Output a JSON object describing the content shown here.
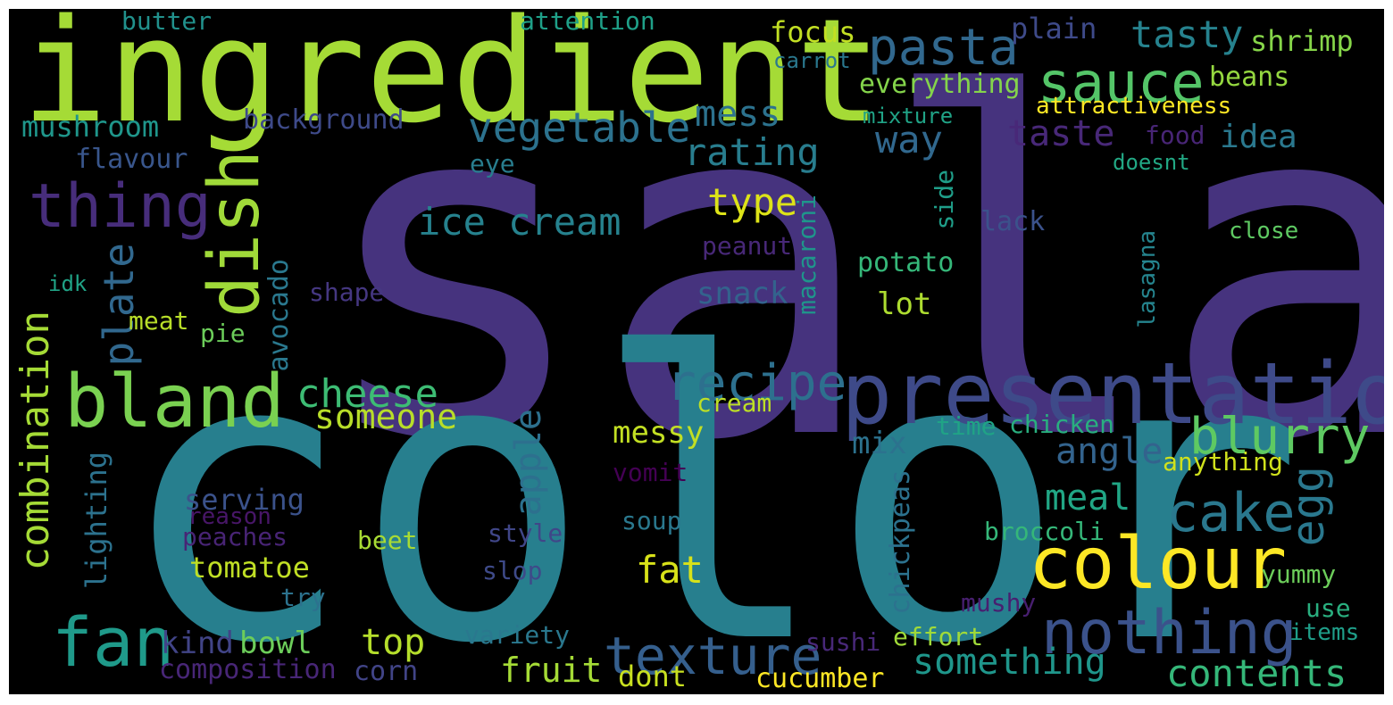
{
  "palette": {
    "background": "#000000",
    "frame": "#ffffff"
  },
  "words": [
    {
      "id": "salad",
      "text": "salad",
      "color": "#46337e"
    },
    {
      "id": "color",
      "text": "color",
      "color": "#277f8e"
    },
    {
      "id": "ingredient",
      "text": "ingredient",
      "color": "#a5db36"
    },
    {
      "id": "presentation",
      "text": "presentation",
      "color": "#3e4a89"
    },
    {
      "id": "colour",
      "text": "colour",
      "color": "#fde725"
    },
    {
      "id": "fan",
      "text": "fan",
      "color": "#1f9a8a"
    },
    {
      "id": "bland",
      "text": "bland",
      "color": "#7ad151"
    },
    {
      "id": "dish",
      "text": "dish",
      "color": "#a0da39"
    },
    {
      "id": "thing",
      "text": "thing",
      "color": "#472d7b"
    },
    {
      "id": "pasta",
      "text": "pasta",
      "color": "#31688e"
    },
    {
      "id": "sauce",
      "text": "sauce",
      "color": "#54c568"
    },
    {
      "id": "nothing",
      "text": "nothing",
      "color": "#3b528b"
    },
    {
      "id": "texture",
      "text": "texture",
      "color": "#355f8d"
    },
    {
      "id": "cake",
      "text": "cake",
      "color": "#2a788e"
    },
    {
      "id": "recipe",
      "text": "recipe",
      "color": "#2d708e"
    },
    {
      "id": "blurry",
      "text": "blurry",
      "color": "#5ec962"
    },
    {
      "id": "vegetable",
      "text": "vegetable",
      "color": "#2c728e"
    },
    {
      "id": "cheese",
      "text": "cheese",
      "color": "#3dbc74"
    },
    {
      "id": "ice-cream",
      "text": "ice cream",
      "color": "#26828e"
    },
    {
      "id": "egg",
      "text": "egg",
      "color": "#2a788e"
    },
    {
      "id": "plate",
      "text": "plate",
      "color": "#31688e"
    },
    {
      "id": "combination",
      "text": "combination",
      "color": "#a5db36"
    },
    {
      "id": "contents",
      "text": "contents",
      "color": "#35b779"
    },
    {
      "id": "something",
      "text": "something",
      "color": "#1f968b"
    },
    {
      "id": "tasty",
      "text": "tasty",
      "color": "#26828e"
    },
    {
      "id": "taste",
      "text": "taste",
      "color": "#482878"
    },
    {
      "id": "way",
      "text": "way",
      "color": "#31688e"
    },
    {
      "id": "rating",
      "text": "rating",
      "color": "#287d8e"
    },
    {
      "id": "mess",
      "text": "mess",
      "color": "#2c728e"
    },
    {
      "id": "type",
      "text": "type",
      "color": "#dde318"
    },
    {
      "id": "someone",
      "text": "someone",
      "color": "#b8de29"
    },
    {
      "id": "apple",
      "text": "apple",
      "color": "#2d708e"
    },
    {
      "id": "meal",
      "text": "meal",
      "color": "#21a685"
    },
    {
      "id": "angle",
      "text": "angle",
      "color": "#33638d"
    },
    {
      "id": "idea",
      "text": "idea",
      "color": "#2a788e"
    },
    {
      "id": "fat",
      "text": "fat",
      "color": "#d8e219"
    },
    {
      "id": "top",
      "text": "top",
      "color": "#b5de2b"
    },
    {
      "id": "fruit",
      "text": "fruit",
      "color": "#a5db36"
    },
    {
      "id": "bowl",
      "text": "bowl",
      "color": "#6ccd5a"
    },
    {
      "id": "kind",
      "text": "kind",
      "color": "#414487"
    },
    {
      "id": "focus",
      "text": "focus",
      "color": "#c2df23"
    },
    {
      "id": "shrimp",
      "text": "shrimp",
      "color": "#86d549"
    },
    {
      "id": "plain",
      "text": "plain",
      "color": "#3e4a89"
    },
    {
      "id": "everything",
      "text": "everything",
      "color": "#84d44b"
    },
    {
      "id": "beans",
      "text": "beans",
      "color": "#95d840"
    },
    {
      "id": "attractiveness",
      "text": "attractiveness",
      "color": "#fde725"
    },
    {
      "id": "food",
      "text": "food",
      "color": "#482576"
    },
    {
      "id": "mixture",
      "text": "mixture",
      "color": "#20a386"
    },
    {
      "id": "carrot",
      "text": "carrot",
      "color": "#2a788e"
    },
    {
      "id": "attention",
      "text": "attention",
      "color": "#1fa088"
    },
    {
      "id": "butter",
      "text": "butter",
      "color": "#21918c"
    },
    {
      "id": "mushroom",
      "text": "mushroom",
      "color": "#1f968b"
    },
    {
      "id": "background",
      "text": "background",
      "color": "#3e4a89"
    },
    {
      "id": "flavour",
      "text": "flavour",
      "color": "#39568c"
    },
    {
      "id": "eye",
      "text": "eye",
      "color": "#287d8e"
    },
    {
      "id": "doesnt",
      "text": "doesnt",
      "color": "#22a884"
    },
    {
      "id": "side",
      "text": "side",
      "color": "#1f9e89"
    },
    {
      "id": "lack",
      "text": "lack",
      "color": "#3b528b"
    },
    {
      "id": "close",
      "text": "close",
      "color": "#5ec962"
    },
    {
      "id": "peanut",
      "text": "peanut",
      "color": "#482878"
    },
    {
      "id": "macaroni",
      "text": "macaroni",
      "color": "#1f968b"
    },
    {
      "id": "potato",
      "text": "potato",
      "color": "#35b779"
    },
    {
      "id": "lasagna",
      "text": "lasagna",
      "color": "#25848e"
    },
    {
      "id": "avocado",
      "text": "avocado",
      "color": "#2a788e"
    },
    {
      "id": "snack",
      "text": "snack",
      "color": "#33638d"
    },
    {
      "id": "lot",
      "text": "lot",
      "color": "#addc30"
    },
    {
      "id": "shape",
      "text": "shape",
      "color": "#453781"
    },
    {
      "id": "idk",
      "text": "idk",
      "color": "#20a386"
    },
    {
      "id": "meat",
      "text": "meat",
      "color": "#b8de29"
    },
    {
      "id": "pie",
      "text": "pie",
      "color": "#6ccd5a"
    },
    {
      "id": "messy",
      "text": "messy",
      "color": "#c2df23"
    },
    {
      "id": "cream",
      "text": "cream",
      "color": "#bddf26"
    },
    {
      "id": "mix",
      "text": "mix",
      "color": "#2c728e"
    },
    {
      "id": "time",
      "text": "time",
      "color": "#20a386"
    },
    {
      "id": "chicken",
      "text": "chicken",
      "color": "#29af7f"
    },
    {
      "id": "anything",
      "text": "anything",
      "color": "#d0e11c"
    },
    {
      "id": "vomit",
      "text": "vomit",
      "color": "#440154"
    },
    {
      "id": "lighting",
      "text": "lighting",
      "color": "#2c728e"
    },
    {
      "id": "serving",
      "text": "serving",
      "color": "#3b528b"
    },
    {
      "id": "reason",
      "text": "reason",
      "color": "#481668"
    },
    {
      "id": "peaches",
      "text": "peaches",
      "color": "#482475"
    },
    {
      "id": "soup",
      "text": "soup",
      "color": "#2a788e"
    },
    {
      "id": "chickpeas",
      "text": "chickpeas",
      "color": "#2c728e"
    },
    {
      "id": "broccoli",
      "text": "broccoli",
      "color": "#35b779"
    },
    {
      "id": "beet",
      "text": "beet",
      "color": "#a8db34"
    },
    {
      "id": "style",
      "text": "style",
      "color": "#404688"
    },
    {
      "id": "tomatoe",
      "text": "tomatoe",
      "color": "#c0df25"
    },
    {
      "id": "slop",
      "text": "slop",
      "color": "#3e4a89"
    },
    {
      "id": "yummy",
      "text": "yummy",
      "color": "#6ccd5a"
    },
    {
      "id": "try",
      "text": "try",
      "color": "#2c728e"
    },
    {
      "id": "mushy",
      "text": "mushy",
      "color": "#481f70"
    },
    {
      "id": "use",
      "text": "use",
      "color": "#29af7f"
    },
    {
      "id": "items",
      "text": "items",
      "color": "#1f9e89"
    },
    {
      "id": "variety",
      "text": "variety",
      "color": "#2a788e"
    },
    {
      "id": "sushi",
      "text": "sushi",
      "color": "#482878"
    },
    {
      "id": "effort",
      "text": "effort",
      "color": "#a0da39"
    },
    {
      "id": "composition",
      "text": "composition",
      "color": "#482677"
    },
    {
      "id": "corn",
      "text": "corn",
      "color": "#414487"
    },
    {
      "id": "dont",
      "text": "dont",
      "color": "#c8e020"
    },
    {
      "id": "cucumber",
      "text": "cucumber",
      "color": "#fde725"
    }
  ]
}
